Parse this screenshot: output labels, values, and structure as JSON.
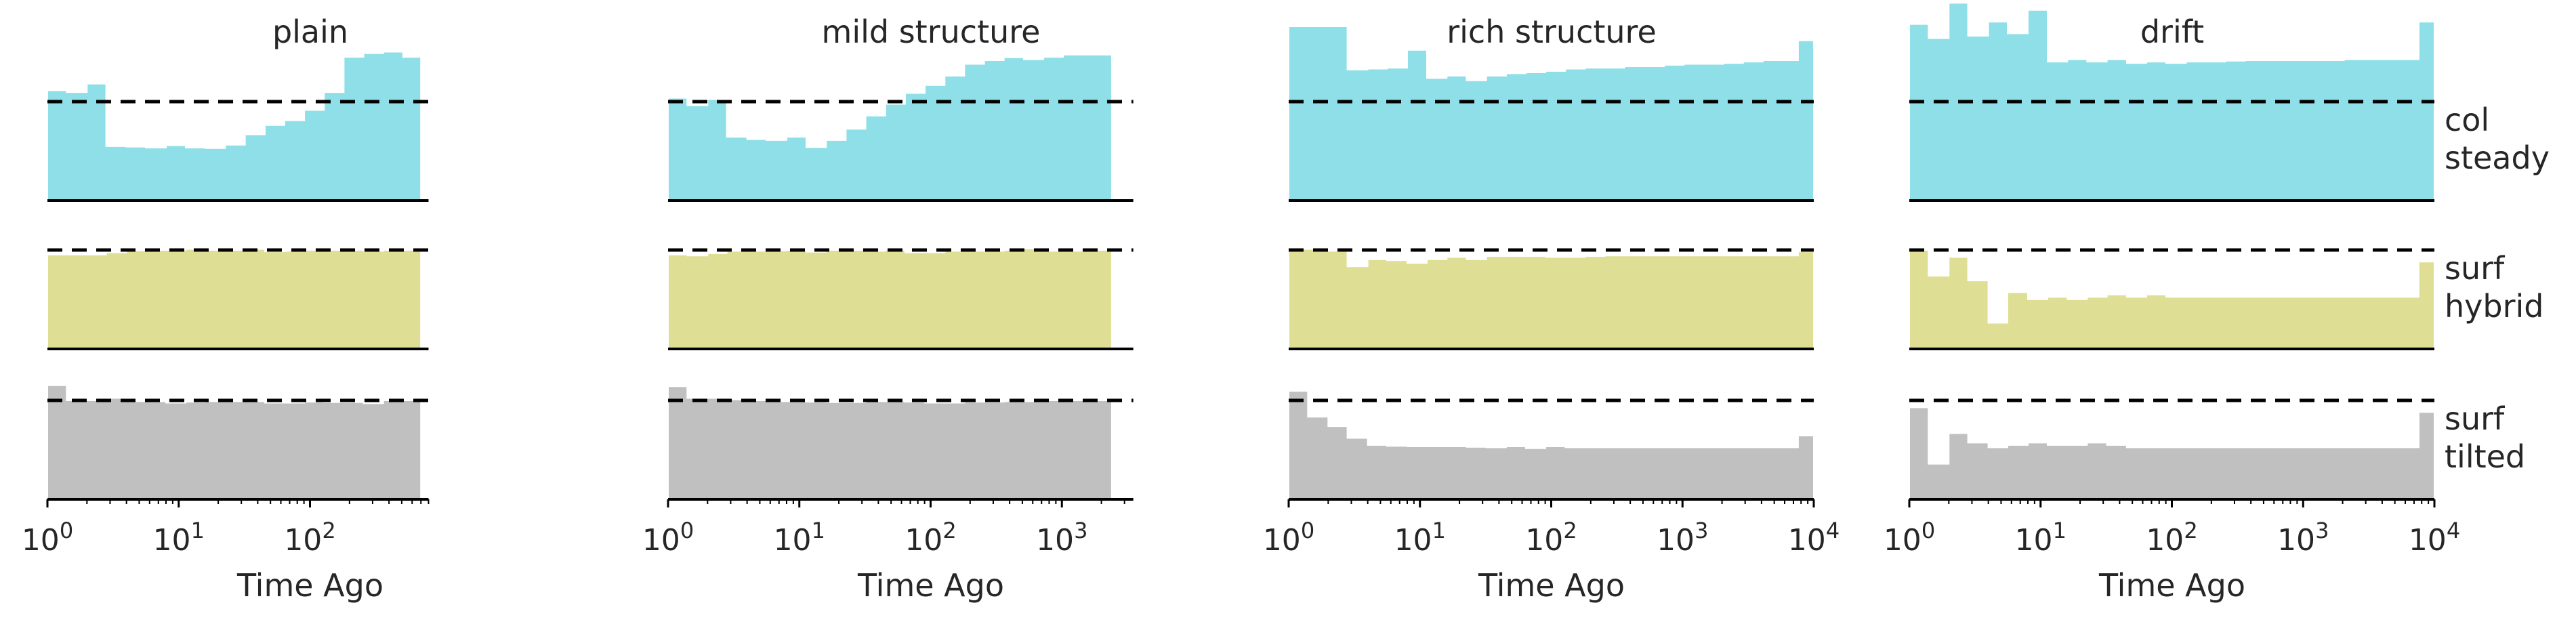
{
  "figure": {
    "row_labels": [
      [
        "col",
        "steady"
      ],
      [
        "surf",
        "hybrid"
      ],
      [
        "surf",
        "tilted"
      ]
    ]
  },
  "colors": {
    "col steady": "#88dde6",
    "surf hybrid": "#dcdd8e",
    "surf tilted": "#bdbdbd",
    "reference_line": "#000000",
    "baseline": "#000000"
  },
  "chart_data": [
    {
      "type": "area",
      "title": "plain",
      "xlabel": "Time Ago",
      "ylabel": "",
      "xscale": "log",
      "xlim": [
        1,
        800
      ],
      "xticks": [
        1,
        10,
        100
      ],
      "xtick_labels": [
        "10^0",
        "10^1",
        "10^2"
      ],
      "edges": [
        1.0,
        1.4,
        2.0,
        2.8,
        4.0,
        5.6,
        8.0,
        11.3,
        16,
        22.6,
        32,
        45.3,
        64,
        90.5,
        128,
        181,
        256,
        362,
        512,
        700
      ],
      "series": [
        {
          "name": "col steady",
          "values": [
            1.24,
            1.2,
            1.38,
            0.05,
            0.04,
            0.02,
            0.07,
            0.02,
            0.01,
            0.08,
            0.3,
            0.5,
            0.6,
            0.82,
            1.2,
            1.95,
            2.03,
            2.06,
            1.95
          ]
        },
        {
          "name": "surf hybrid",
          "values": [
            0.9,
            0.9,
            0.9,
            0.95,
            0.99,
            1.0,
            1.0,
            1.02,
            1.0,
            1.0,
            1.02,
            0.97,
            0.98,
            1.0,
            1.0,
            1.0,
            0.98,
            1.0,
            1.0
          ]
        },
        {
          "name": "surf tilted",
          "values": [
            1.32,
            1.0,
            1.0,
            1.05,
            0.98,
            0.98,
            0.95,
            0.97,
            0.98,
            0.98,
            0.98,
            0.95,
            0.95,
            0.97,
            0.96,
            0.96,
            0.94,
            1.0,
            1.0
          ]
        }
      ]
    },
    {
      "type": "area",
      "title": "mild structure",
      "xlabel": "Time Ago",
      "ylabel": "",
      "xscale": "log",
      "xlim": [
        1,
        3500
      ],
      "xticks": [
        1,
        10,
        100,
        1000
      ],
      "xtick_labels": [
        "10^0",
        "10^1",
        "10^2",
        "10^3"
      ],
      "edges": [
        1.0,
        1.4,
        2.0,
        2.8,
        4.0,
        5.6,
        8.0,
        11.3,
        16,
        22.6,
        32,
        45.3,
        64,
        90.5,
        128,
        181,
        256,
        362,
        512,
        724,
        1024,
        1448,
        2048,
        2400
      ],
      "series": [
        {
          "name": "col steady",
          "values": [
            1.08,
            0.92,
            1.05,
            0.25,
            0.2,
            0.18,
            0.25,
            0.03,
            0.18,
            0.42,
            0.7,
            0.95,
            1.18,
            1.35,
            1.55,
            1.8,
            1.88,
            1.94,
            1.9,
            1.95,
            2.0,
            2.0,
            2.0
          ]
        },
        {
          "name": "surf hybrid",
          "values": [
            0.9,
            0.88,
            0.93,
            0.98,
            0.98,
            0.99,
            1.0,
            0.96,
            1.0,
            1.0,
            0.98,
            1.0,
            0.95,
            0.95,
            0.98,
            0.98,
            0.98,
            1.0,
            1.03,
            0.98,
            0.98,
            1.0,
            1.0
          ]
        },
        {
          "name": "surf tilted",
          "values": [
            1.3,
            1.05,
            1.05,
            1.02,
            1.0,
            0.98,
            0.98,
            0.97,
            0.96,
            0.96,
            0.98,
            0.98,
            0.97,
            0.95,
            0.95,
            0.97,
            0.97,
            0.98,
            0.98,
            1.0,
            1.0,
            1.0,
            1.0
          ]
        }
      ]
    },
    {
      "type": "area",
      "title": "rich structure",
      "xlabel": "Time Ago",
      "ylabel": "",
      "xscale": "log",
      "xlim": [
        1,
        10000
      ],
      "xticks": [
        1,
        10,
        100,
        1000,
        10000
      ],
      "xtick_labels": [
        "10^0",
        "10^1",
        "10^2",
        "10^3",
        "10^4"
      ],
      "edges": [
        1.0,
        1.4,
        2.0,
        2.8,
        4.0,
        5.6,
        8.0,
        11.3,
        16,
        22.6,
        32,
        45.3,
        64,
        90.5,
        128,
        181,
        256,
        362,
        512,
        724,
        1024,
        1448,
        2048,
        2896,
        4096,
        5792,
        7600,
        10000
      ],
      "series": [
        {
          "name": "col steady",
          "values": [
            2.6,
            2.6,
            2.6,
            1.68,
            1.7,
            1.72,
            2.1,
            1.5,
            1.55,
            1.45,
            1.55,
            1.6,
            1.62,
            1.65,
            1.7,
            1.72,
            1.72,
            1.75,
            1.75,
            1.78,
            1.8,
            1.8,
            1.82,
            1.85,
            1.88,
            1.88,
            2.3
          ]
        },
        {
          "name": "surf hybrid",
          "values": [
            1.02,
            1.02,
            0.98,
            0.65,
            0.8,
            0.78,
            0.72,
            0.8,
            0.85,
            0.8,
            0.87,
            0.87,
            0.87,
            0.85,
            0.85,
            0.87,
            0.88,
            0.88,
            0.88,
            0.88,
            0.88,
            0.88,
            0.88,
            0.88,
            0.88,
            0.88,
            0.97
          ]
        },
        {
          "name": "surf tilted",
          "values": [
            1.2,
            0.65,
            0.45,
            0.2,
            0.05,
            0.03,
            0.02,
            0.02,
            0.02,
            0.01,
            0.0,
            0.02,
            -0.02,
            0.02,
            0.0,
            0.0,
            0.0,
            0.0,
            0.0,
            0.0,
            0.0,
            0.0,
            0.0,
            0.0,
            0.0,
            0.0,
            0.25
          ]
        }
      ]
    },
    {
      "type": "area",
      "title": "drift",
      "xlabel": "Time Ago",
      "ylabel": "",
      "xscale": "log",
      "xlim": [
        1,
        10000
      ],
      "xticks": [
        1,
        10,
        100,
        1000,
        10000
      ],
      "xtick_labels": [
        "10^0",
        "10^1",
        "10^2",
        "10^3",
        "10^4"
      ],
      "edges": [
        1.0,
        1.4,
        2.0,
        2.8,
        4.0,
        5.6,
        8.0,
        11.3,
        16,
        22.6,
        32,
        45.3,
        64,
        90.5,
        128,
        181,
        256,
        362,
        512,
        724,
        1024,
        1448,
        2048,
        2896,
        4096,
        5792,
        7600,
        10000
      ],
      "series": [
        {
          "name": "col steady",
          "values": [
            2.65,
            2.35,
            3.1,
            2.4,
            2.7,
            2.45,
            2.95,
            1.85,
            1.9,
            1.85,
            1.9,
            1.82,
            1.85,
            1.82,
            1.85,
            1.85,
            1.87,
            1.88,
            1.88,
            1.88,
            1.88,
            1.88,
            1.9,
            1.9,
            1.9,
            1.9,
            2.7
          ]
        },
        {
          "name": "surf hybrid",
          "values": [
            1.0,
            0.45,
            0.85,
            0.35,
            -0.55,
            0.1,
            -0.05,
            0.0,
            -0.05,
            0.0,
            0.05,
            0.0,
            0.05,
            0.0,
            0.0,
            0.0,
            0.0,
            0.0,
            0.0,
            0.0,
            0.0,
            0.0,
            0.0,
            0.0,
            0.0,
            0.0,
            0.75
          ]
        },
        {
          "name": "surf tilted",
          "values": [
            0.85,
            -0.35,
            0.3,
            0.1,
            0.0,
            0.05,
            0.1,
            0.05,
            0.05,
            0.1,
            0.05,
            0.0,
            0.0,
            0.0,
            0.0,
            0.0,
            0.0,
            0.0,
            0.0,
            0.0,
            0.0,
            0.0,
            0.0,
            0.0,
            0.0,
            0.0,
            0.75
          ]
        }
      ]
    }
  ]
}
